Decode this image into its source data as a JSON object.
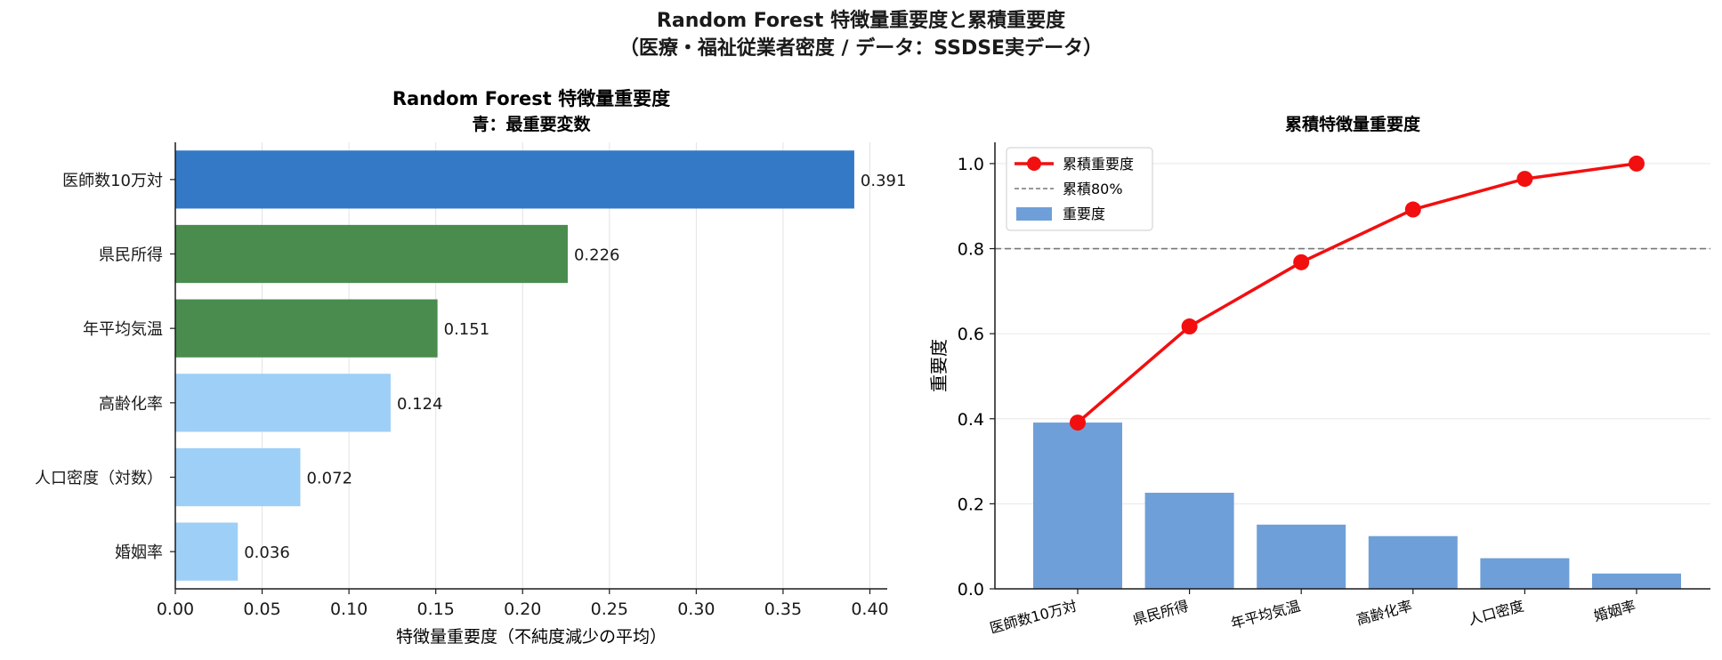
{
  "figure": {
    "suptitle_line1": "Random Forest 特徴量重要度と累積重要度",
    "suptitle_line2": "（医療・福祉従業者密度 / データ：SSDSE実データ）"
  },
  "chart_data": [
    {
      "type": "bar",
      "orientation": "horizontal",
      "title_line1": "Random Forest 特徴量重要度",
      "title_line2": "青：最重要変数",
      "xlabel": "特徴量重要度（不純度減少の平均）",
      "ylabel": "",
      "categories": [
        "医師数10万対",
        "県民所得",
        "年平均気温",
        "高齢化率",
        "人口密度（対数）",
        "婚姻率"
      ],
      "values": [
        0.391,
        0.226,
        0.151,
        0.124,
        0.072,
        0.036
      ],
      "value_labels": [
        "0.391",
        "0.226",
        "0.151",
        "0.124",
        "0.072",
        "0.036"
      ],
      "bar_colors": [
        "#3479c6",
        "#4a8c4e",
        "#4a8c4e",
        "#9ecff7",
        "#9ecff7",
        "#9ecff7"
      ],
      "xlim": [
        0,
        0.41
      ],
      "xticks": [
        0.0,
        0.05,
        0.1,
        0.15,
        0.2,
        0.25,
        0.3,
        0.35,
        0.4
      ],
      "xtick_labels": [
        "0.00",
        "0.05",
        "0.10",
        "0.15",
        "0.20",
        "0.25",
        "0.30",
        "0.35",
        "0.40"
      ],
      "grid": "x"
    },
    {
      "type": "bar+line",
      "title": "累積特徴量重要度",
      "xlabel": "",
      "ylabel": "重要度",
      "categories": [
        "医師数10万対",
        "県民所得",
        "年平均気温",
        "高齢化率",
        "人口密度",
        "婚姻率"
      ],
      "series": [
        {
          "name": "重要度",
          "type": "bar",
          "color": "#6f9fd8",
          "values": [
            0.391,
            0.226,
            0.151,
            0.124,
            0.072,
            0.036
          ]
        },
        {
          "name": "累積重要度",
          "type": "line",
          "color": "#f20f0f",
          "values": [
            0.391,
            0.617,
            0.768,
            0.892,
            0.964,
            1.0
          ]
        }
      ],
      "reference_line": {
        "name": "累積80%",
        "y": 0.8,
        "color": "#777777",
        "style": "dashed"
      },
      "ylim": [
        0,
        1.05
      ],
      "yticks": [
        0.0,
        0.2,
        0.4,
        0.6,
        0.8,
        1.0
      ],
      "ytick_labels": [
        "0.0",
        "0.2",
        "0.4",
        "0.6",
        "0.8",
        "1.0"
      ],
      "legend": {
        "placement": "top-left",
        "entries": [
          "累積重要度",
          "累積80%",
          "重要度"
        ]
      },
      "grid": "y"
    }
  ]
}
